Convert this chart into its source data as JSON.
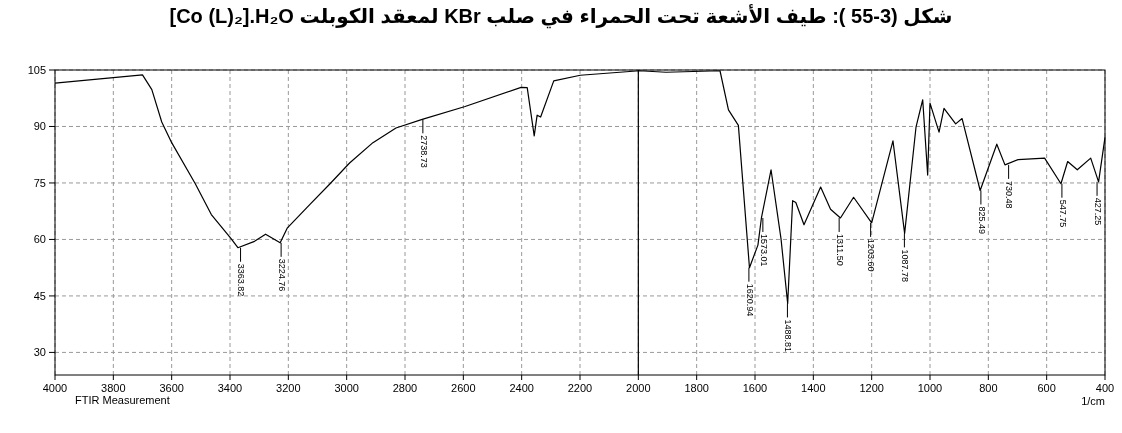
{
  "chart_data": {
    "type": "line",
    "title": "شكل (3-55 ): طيف الأشعة تحت الحمراء في صلب KBr لمعقد الكوبلت [Co (L)₂].H₂O",
    "xlabel": "1/cm",
    "xlim": [
      4000,
      400
    ],
    "xticks": [
      4000,
      3800,
      3600,
      3400,
      3200,
      3000,
      2800,
      2600,
      2400,
      2200,
      2000,
      1800,
      1600,
      1400,
      1200,
      1000,
      800,
      600,
      400
    ],
    "ylim": [
      24,
      105
    ],
    "yticks": [
      30,
      45,
      60,
      75,
      90,
      105
    ],
    "grid": true,
    "marker": "none",
    "line_style": "solid",
    "ref_lines": [
      {
        "axis": "x",
        "value": 2000,
        "color": "#000000"
      }
    ],
    "series": [
      {
        "color": "#000000",
        "x": [
          4000,
          3800,
          3700,
          3668,
          3634,
          3600,
          3519,
          3464,
          3397,
          3373,
          3316,
          3278,
          3228,
          3204,
          3125,
          3057,
          2990,
          2910,
          2831,
          2741,
          2594,
          2402,
          2381,
          2357,
          2347,
          2335,
          2290,
          2199,
          1996,
          1905,
          1720,
          1691,
          1657,
          1619,
          1590,
          1578,
          1545,
          1511,
          1488,
          1471,
          1460,
          1432,
          1375,
          1341,
          1307,
          1262,
          1200,
          1127,
          1087,
          1048,
          1025,
          1008,
          1000,
          969,
          952,
          912,
          890,
          828,
          771,
          743,
          698,
          607,
          551,
          528,
          495,
          449,
          422,
          400
        ],
        "values": [
          101.5,
          103,
          103.7,
          99.8,
          91.2,
          85.7,
          74.8,
          66.6,
          60.3,
          57.8,
          59.5,
          61.4,
          59.1,
          63,
          69.4,
          74.8,
          80.3,
          85.7,
          89.6,
          91.9,
          95.3,
          100.4,
          100.3,
          87.5,
          93,
          92.5,
          102.1,
          103.6,
          104.8,
          104.4,
          104.8,
          94.4,
          90.3,
          52.5,
          58.5,
          65.7,
          78.5,
          60.3,
          43,
          70.3,
          69.8,
          63.9,
          73.9,
          68,
          65.7,
          71.2,
          64.4,
          86.2,
          61.6,
          89.8,
          97.1,
          77.1,
          96.2,
          88.5,
          94.8,
          90.7,
          92.1,
          73,
          85.3,
          79.8,
          81.2,
          81.6,
          74.8,
          80.7,
          78.5,
          81.6,
          75.3,
          87.1
        ]
      }
    ],
    "annotations": [
      {
        "text": "3363.82",
        "x": 3363.82,
        "y": 57.8
      },
      {
        "text": "3224.76",
        "x": 3224.76,
        "y": 59.1
      },
      {
        "text": "2738.73",
        "x": 2738.73,
        "y": 91.9
      },
      {
        "text": "1620.94",
        "x": 1620.94,
        "y": 52.5
      },
      {
        "text": "1573.01",
        "x": 1573.01,
        "y": 65.7
      },
      {
        "text": "1488.81",
        "x": 1488.81,
        "y": 43
      },
      {
        "text": "1311.50",
        "x": 1311.5,
        "y": 65.7
      },
      {
        "text": "1203.60",
        "x": 1203.6,
        "y": 64.4
      },
      {
        "text": "1087.78",
        "x": 1087.78,
        "y": 61.6
      },
      {
        "text": "825.49",
        "x": 825.49,
        "y": 73
      },
      {
        "text": "730.48",
        "x": 730.48,
        "y": 79.8
      },
      {
        "text": "547.75",
        "x": 547.75,
        "y": 74.8
      },
      {
        "text": "427.25",
        "x": 427.25,
        "y": 75.3
      },
      "FTIR Measurement"
    ]
  }
}
